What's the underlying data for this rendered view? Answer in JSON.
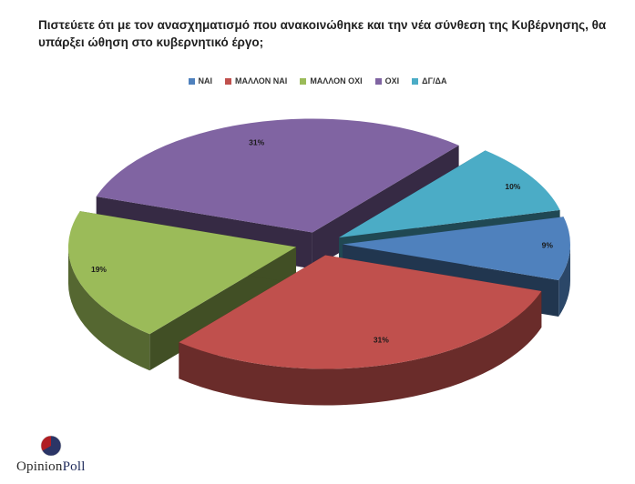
{
  "chart_data": {
    "type": "pie",
    "title": "Πιστεύετε ότι με τον ανασχηματισμό που ανακοινώθηκε και την νέα σύνθεση της Κυβέρνησης, θα υπάρξει ώθηση στο κυβερνητικό έργο;",
    "style": "3d-exploded",
    "legend_position": "top",
    "categories": [
      "ΝΑΙ",
      "ΜΑΛΛΟΝ ΝΑΙ",
      "ΜΑΛΛΟΝ ΟΧΙ",
      "ΟΧΙ",
      "ΔΓ/ΔΑ"
    ],
    "values": [
      9,
      31,
      19,
      31,
      10
    ],
    "value_labels": [
      "9%",
      "31%",
      "19%",
      "31%",
      "10%"
    ],
    "colors": [
      "#4f81bd",
      "#c0504d",
      "#9bbb59",
      "#8064a2",
      "#4bacc6"
    ]
  },
  "logo": {
    "text_part1": "Opinion",
    "text_part2": "Poll"
  }
}
